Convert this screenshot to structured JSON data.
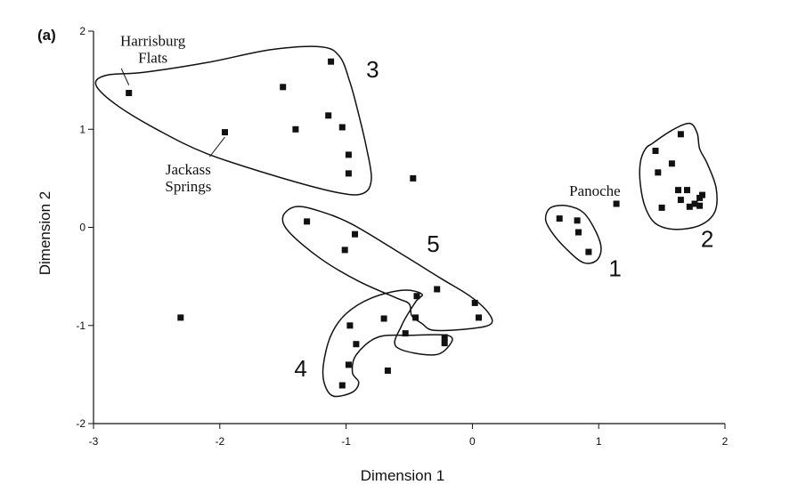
{
  "chart_data": {
    "type": "scatter",
    "panel_label": "(a)",
    "xlabel": "Dimension 1",
    "ylabel": "Dimension 2",
    "xlim": [
      -3,
      2
    ],
    "ylim": [
      -2,
      2
    ],
    "xticks": [
      -3,
      -2,
      -1,
      0,
      1,
      2
    ],
    "yticks": [
      -2,
      -1,
      0,
      1,
      2
    ],
    "grid": false,
    "points": [
      {
        "x": -2.72,
        "y": 1.37
      },
      {
        "x": -1.96,
        "y": 0.97
      },
      {
        "x": -1.5,
        "y": 1.43
      },
      {
        "x": -1.12,
        "y": 1.69
      },
      {
        "x": -1.14,
        "y": 1.14
      },
      {
        "x": -1.4,
        "y": 1.0
      },
      {
        "x": -1.03,
        "y": 1.02
      },
      {
        "x": -0.98,
        "y": 0.74
      },
      {
        "x": -0.98,
        "y": 0.55
      },
      {
        "x": -0.47,
        "y": 0.5
      },
      {
        "x": -2.31,
        "y": -0.92
      },
      {
        "x": -1.31,
        "y": 0.06
      },
      {
        "x": -0.93,
        "y": -0.07
      },
      {
        "x": -1.01,
        "y": -0.23
      },
      {
        "x": -0.28,
        "y": -0.63
      },
      {
        "x": -0.44,
        "y": -0.7
      },
      {
        "x": 0.02,
        "y": -0.77
      },
      {
        "x": 0.05,
        "y": -0.92
      },
      {
        "x": -0.45,
        "y": -0.92
      },
      {
        "x": -0.7,
        "y": -0.93
      },
      {
        "x": -0.97,
        "y": -1.0
      },
      {
        "x": -0.53,
        "y": -1.08
      },
      {
        "x": -0.22,
        "y": -1.12
      },
      {
        "x": -0.22,
        "y": -1.18
      },
      {
        "x": -0.92,
        "y": -1.19
      },
      {
        "x": -0.98,
        "y": -1.4
      },
      {
        "x": -0.67,
        "y": -1.46
      },
      {
        "x": -1.03,
        "y": -1.61
      },
      {
        "x": 0.69,
        "y": 0.09
      },
      {
        "x": 0.83,
        "y": 0.07
      },
      {
        "x": 0.84,
        "y": -0.05
      },
      {
        "x": 0.92,
        "y": -0.25
      },
      {
        "x": 1.14,
        "y": 0.24
      },
      {
        "x": 1.45,
        "y": 0.78
      },
      {
        "x": 1.47,
        "y": 0.56
      },
      {
        "x": 1.65,
        "y": 0.95
      },
      {
        "x": 1.58,
        "y": 0.65
      },
      {
        "x": 1.5,
        "y": 0.2
      },
      {
        "x": 1.63,
        "y": 0.38
      },
      {
        "x": 1.7,
        "y": 0.38
      },
      {
        "x": 1.65,
        "y": 0.28
      },
      {
        "x": 1.72,
        "y": 0.21
      },
      {
        "x": 1.76,
        "y": 0.24
      },
      {
        "x": 1.8,
        "y": 0.3
      },
      {
        "x": 1.82,
        "y": 0.33
      },
      {
        "x": 1.8,
        "y": 0.22
      }
    ],
    "clusters": [
      {
        "label": "1",
        "outline": [
          [
            0.62,
            0.2
          ],
          [
            0.75,
            0.22
          ],
          [
            0.88,
            0.15
          ],
          [
            0.98,
            -0.05
          ],
          [
            1.02,
            -0.22
          ],
          [
            0.98,
            -0.34
          ],
          [
            0.88,
            -0.36
          ],
          [
            0.76,
            -0.24
          ],
          [
            0.64,
            -0.07
          ],
          [
            0.58,
            0.08
          ]
        ],
        "label_at": [
          1.13,
          -0.5
        ]
      },
      {
        "label": "2",
        "outline": [
          [
            1.43,
            0.86
          ],
          [
            1.58,
            0.99
          ],
          [
            1.72,
            1.06
          ],
          [
            1.78,
            0.96
          ],
          [
            1.8,
            0.8
          ],
          [
            1.86,
            0.65
          ],
          [
            1.93,
            0.4
          ],
          [
            1.92,
            0.16
          ],
          [
            1.8,
            0.02
          ],
          [
            1.6,
            -0.02
          ],
          [
            1.45,
            0.04
          ],
          [
            1.37,
            0.2
          ],
          [
            1.33,
            0.44
          ],
          [
            1.33,
            0.66
          ],
          [
            1.37,
            0.8
          ]
        ],
        "label_at": [
          1.86,
          -0.2
        ]
      },
      {
        "label": "3",
        "outline": [
          [
            -2.9,
            1.55
          ],
          [
            -2.6,
            1.58
          ],
          [
            -2.1,
            1.68
          ],
          [
            -1.6,
            1.81
          ],
          [
            -1.2,
            1.84
          ],
          [
            -1.05,
            1.74
          ],
          [
            -0.97,
            1.48
          ],
          [
            -0.91,
            1.2
          ],
          [
            -0.84,
            0.82
          ],
          [
            -0.8,
            0.5
          ],
          [
            -0.86,
            0.35
          ],
          [
            -1.05,
            0.35
          ],
          [
            -1.5,
            0.5
          ],
          [
            -2.1,
            0.75
          ],
          [
            -2.5,
            1.0
          ],
          [
            -2.82,
            1.25
          ],
          [
            -2.98,
            1.45
          ]
        ],
        "label_at": [
          -0.79,
          1.53
        ]
      },
      {
        "label": "4",
        "outline": [
          [
            -1.1,
            -1.72
          ],
          [
            -0.95,
            -1.68
          ],
          [
            -0.9,
            -1.58
          ],
          [
            -0.95,
            -1.48
          ],
          [
            -0.92,
            -1.3
          ],
          [
            -0.75,
            -1.12
          ],
          [
            -0.48,
            -1.1
          ],
          [
            -0.2,
            -1.1
          ],
          [
            -0.17,
            -1.18
          ],
          [
            -0.3,
            -1.3
          ],
          [
            -0.6,
            -1.22
          ],
          [
            -0.56,
            -1.0
          ],
          [
            -0.45,
            -0.76
          ],
          [
            -0.4,
            -0.68
          ],
          [
            -0.55,
            -0.64
          ],
          [
            -0.8,
            -0.72
          ],
          [
            -1.0,
            -0.88
          ],
          [
            -1.12,
            -1.1
          ],
          [
            -1.18,
            -1.4
          ],
          [
            -1.17,
            -1.6
          ]
        ],
        "label_at": [
          -1.36,
          -1.52
        ]
      },
      {
        "label": "5",
        "outline": [
          [
            -1.4,
            0.21
          ],
          [
            -1.22,
            0.17
          ],
          [
            -0.95,
            0.03
          ],
          [
            -0.55,
            -0.28
          ],
          [
            -0.25,
            -0.52
          ],
          [
            -0.02,
            -0.7
          ],
          [
            0.12,
            -0.86
          ],
          [
            0.15,
            -0.98
          ],
          [
            0.0,
            -1.03
          ],
          [
            -0.3,
            -1.05
          ],
          [
            -0.4,
            -0.98
          ],
          [
            -0.48,
            -0.9
          ],
          [
            -0.5,
            -0.78
          ],
          [
            -0.6,
            -0.72
          ],
          [
            -0.9,
            -0.55
          ],
          [
            -1.2,
            -0.32
          ],
          [
            -1.45,
            -0.05
          ],
          [
            -1.5,
            0.11
          ]
        ],
        "label_at": [
          -0.31,
          -0.25
        ]
      }
    ],
    "annotations": [
      {
        "lines": [
          "Harrisburg",
          "Flats"
        ],
        "text_at": [
          -2.53,
          1.85
        ],
        "anchor": "middle",
        "leader": [
          [
            -2.78,
            1.62
          ],
          [
            -2.72,
            1.45
          ]
        ]
      },
      {
        "lines": [
          "Jackass",
          "Springs"
        ],
        "text_at": [
          -2.25,
          0.54
        ],
        "anchor": "middle",
        "leader": [
          [
            -2.08,
            0.72
          ],
          [
            -1.96,
            0.92
          ]
        ]
      },
      {
        "lines": [
          "Panoche"
        ],
        "text_at": [
          0.97,
          0.32
        ],
        "anchor": "middle",
        "leader": []
      }
    ]
  }
}
